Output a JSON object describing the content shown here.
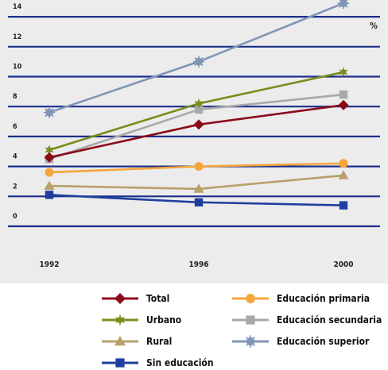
{
  "chart_data": {
    "type": "line",
    "title": "",
    "xlabel": "",
    "ylabel": "",
    "unit_label": "%",
    "x": [
      "1992",
      "1996",
      "2000"
    ],
    "y_ticks": [
      "0",
      "2",
      "4",
      "6",
      "8",
      "10",
      "12",
      "14"
    ],
    "ylim": [
      -1,
      16
    ],
    "grid": true,
    "legend_position": "bottom",
    "series": [
      {
        "name": "Total",
        "values": [
          4.6,
          6.8,
          8.1
        ],
        "color": "#8b0a1a",
        "marker": "diamond"
      },
      {
        "name": "Urbano",
        "values": [
          5.1,
          8.2,
          10.3
        ],
        "color": "#7a8c1c",
        "marker": "star"
      },
      {
        "name": "Rural",
        "values": [
          2.7,
          2.5,
          3.4
        ],
        "color": "#b9a06a",
        "marker": "triangle"
      },
      {
        "name": "Sin educación",
        "values": [
          2.1,
          1.6,
          1.4
        ],
        "color": "#1f3e9e",
        "marker": "square"
      },
      {
        "name": "Educación primaria",
        "values": [
          3.6,
          4.0,
          4.2
        ],
        "color": "#f5a53c",
        "marker": "circle"
      },
      {
        "name": "Educación secundaria",
        "values": [
          4.5,
          7.8,
          8.8
        ],
        "color": "#a8a8a8",
        "marker": "square"
      },
      {
        "name": "Educación superior",
        "values": [
          7.6,
          11.0,
          14.9
        ],
        "color": "#8196b7",
        "marker": "circle-star"
      }
    ],
    "legend_columns": [
      [
        "Total",
        "Urbano",
        "Rural",
        "Sin educación"
      ],
      [
        "Educación primaria",
        "Educación secundaria",
        "Educación superior"
      ]
    ],
    "gridline_color": "#1c2f8c"
  }
}
